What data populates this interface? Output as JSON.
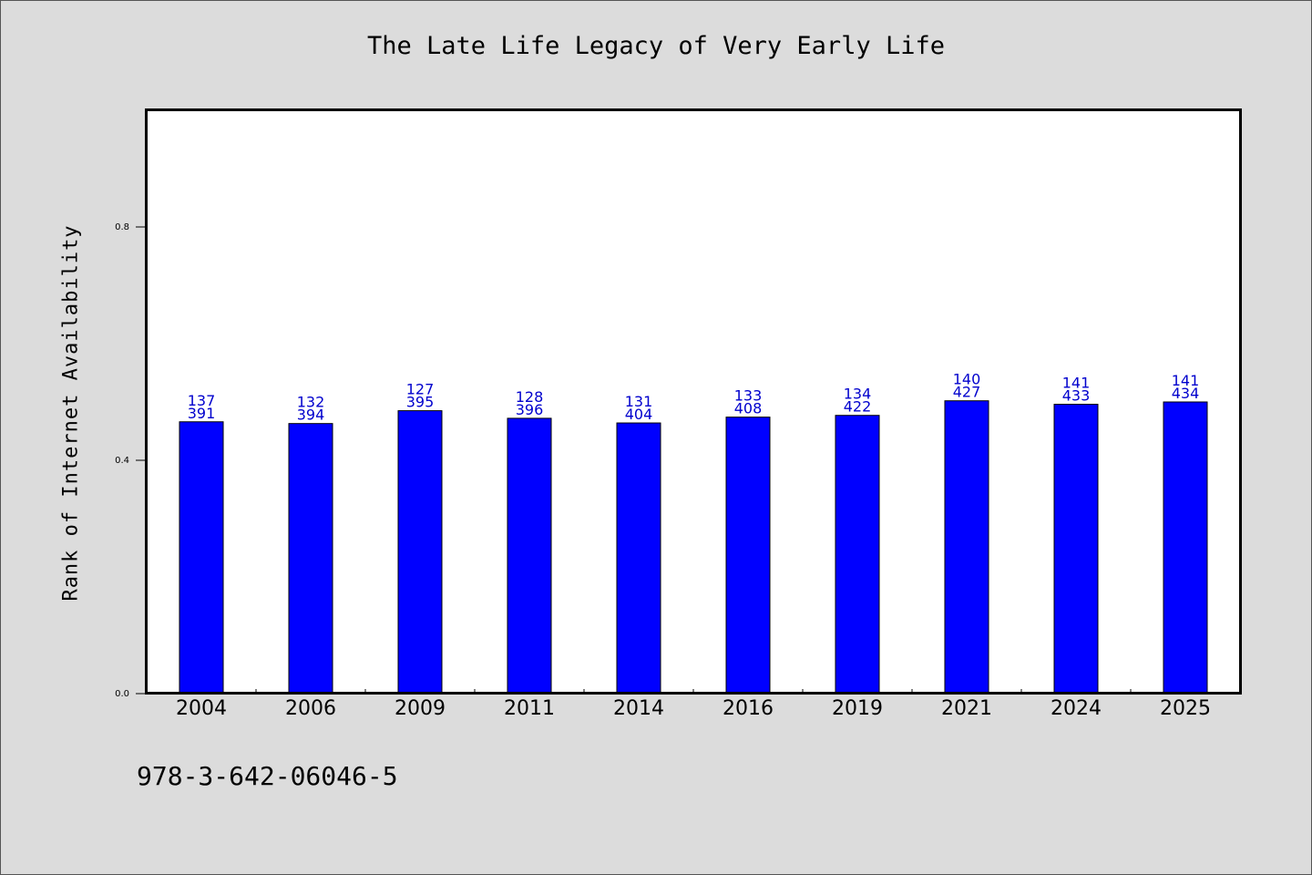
{
  "chart_data": {
    "type": "bar",
    "title": "The Late Life Legacy of Very Early Life",
    "xlabel": "",
    "ylabel": "Rank of Internet Availability",
    "categories": [
      "2004",
      "2006",
      "2009",
      "2011",
      "2014",
      "2016",
      "2019",
      "2021",
      "2024",
      "2025"
    ],
    "values": [
      0.466,
      0.463,
      0.485,
      0.472,
      0.464,
      0.474,
      0.477,
      0.502,
      0.496,
      0.5
    ],
    "bar_labels_top": [
      "137",
      "132",
      "127",
      "128",
      "131",
      "133",
      "134",
      "140",
      "141",
      "141"
    ],
    "bar_labels_bottom": [
      "391",
      "394",
      "395",
      "396",
      "404",
      "408",
      "422",
      "427",
      "433",
      "434"
    ],
    "yticks": [
      "0.0",
      "0.4",
      "0.8"
    ],
    "ylim": [
      0,
      1.0
    ],
    "grid": false,
    "legend": "none",
    "bar_color": "#0000ff",
    "label_color": "#0000cd"
  },
  "footer_text": "978-3-642-06046-5"
}
